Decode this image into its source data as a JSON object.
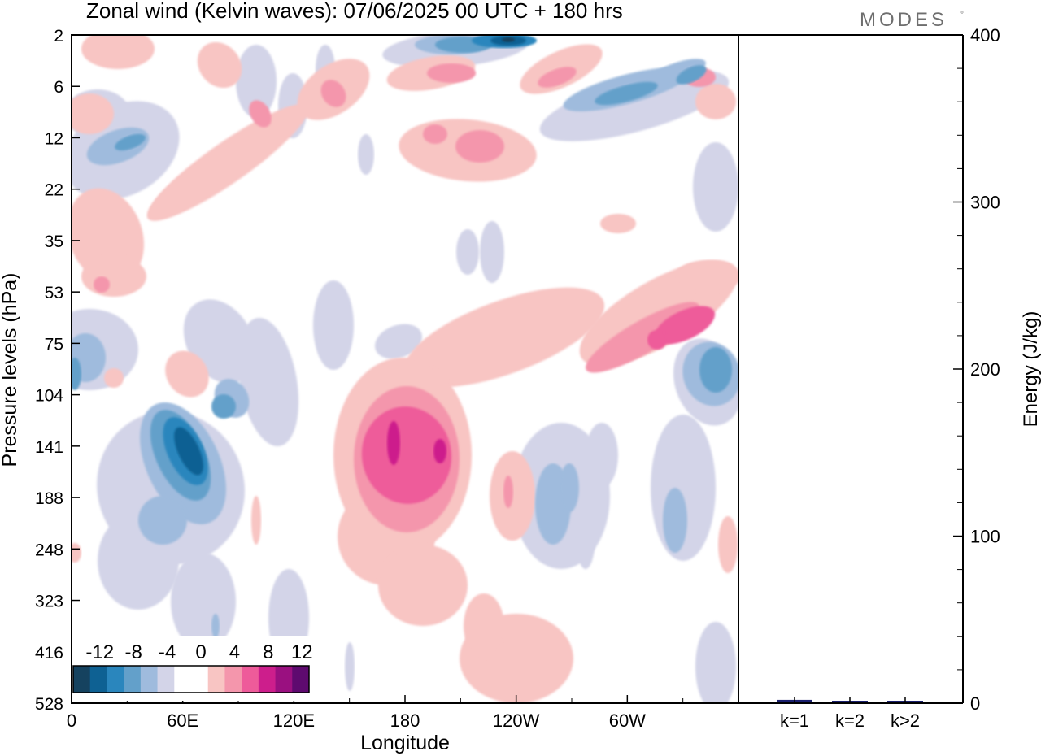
{
  "title": "Zonal wind (Kelvin waves):  07/06/2025  00 UTC  + 180 hrs",
  "brand": "MODES",
  "brand_mark": "°",
  "colors": {
    "neg_levels": [
      "#15425f",
      "#0e6193",
      "#2a86bd",
      "#63a0ca",
      "#9fbbdd",
      "#d3d4e8"
    ],
    "zero": "#ffffff",
    "pos_levels": [
      "#f8c5c3",
      "#f496ac",
      "#ee5b9a",
      "#cd1e8c",
      "#9a1080",
      "#5e0a6f"
    ],
    "bar": "#1a1f6e"
  },
  "chart_data": [
    {
      "type": "heatmap",
      "name": "zonal-wind-contour",
      "xlabel": "Longitude",
      "ylabel": "Pressure levels (hPa)",
      "x_ticks": [
        "0",
        "60E",
        "120E",
        "180",
        "120W",
        "60W"
      ],
      "x_tick_values": [
        0,
        60,
        120,
        180,
        240,
        300
      ],
      "xlim": [
        0,
        360
      ],
      "y_ticks": [
        "2",
        "6",
        "12",
        "22",
        "35",
        "53",
        "75",
        "104",
        "141",
        "188",
        "248",
        "323",
        "416",
        "528"
      ],
      "y_scale": "levels (top = 2 hPa, bottom = 528 hPa)",
      "colorbar": {
        "labels": [
          "-12",
          "-8",
          "-4",
          "0",
          "4",
          "8",
          "12"
        ],
        "levels": [
          -12,
          -10,
          -8,
          -6,
          -4,
          -2,
          0,
          2,
          4,
          6,
          8,
          10,
          12
        ],
        "placement": "bottom-left inset"
      },
      "features": [
        {
          "sign": "negative",
          "lon": 63,
          "level": "141",
          "peak": -11
        },
        {
          "sign": "negative",
          "lon": 0,
          "level": "90",
          "peak": -6
        },
        {
          "sign": "negative",
          "lon": 235,
          "level": "2",
          "peak": -12
        },
        {
          "sign": "negative",
          "lon": 300,
          "level": "6",
          "peak": -8
        },
        {
          "sign": "negative",
          "lon": 345,
          "level": "104",
          "peak": -7
        },
        {
          "sign": "positive",
          "lon": 183,
          "level": "141",
          "peak": 9
        },
        {
          "sign": "positive",
          "lon": 320,
          "level": "75",
          "peak": 7
        },
        {
          "sign": "positive",
          "lon": 215,
          "level": "12",
          "peak": 4
        },
        {
          "sign": "positive",
          "lon": 212,
          "level": "416",
          "peak": 2
        }
      ]
    },
    {
      "type": "bar",
      "name": "energy",
      "ylabel": "Energy (J/kg)",
      "ylim": [
        0,
        400
      ],
      "y_ticks": [
        0,
        100,
        200,
        300,
        400
      ],
      "categories": [
        "k=1",
        "k=2",
        "k>2"
      ],
      "values": [
        1.5,
        0.5,
        0.6
      ]
    }
  ]
}
